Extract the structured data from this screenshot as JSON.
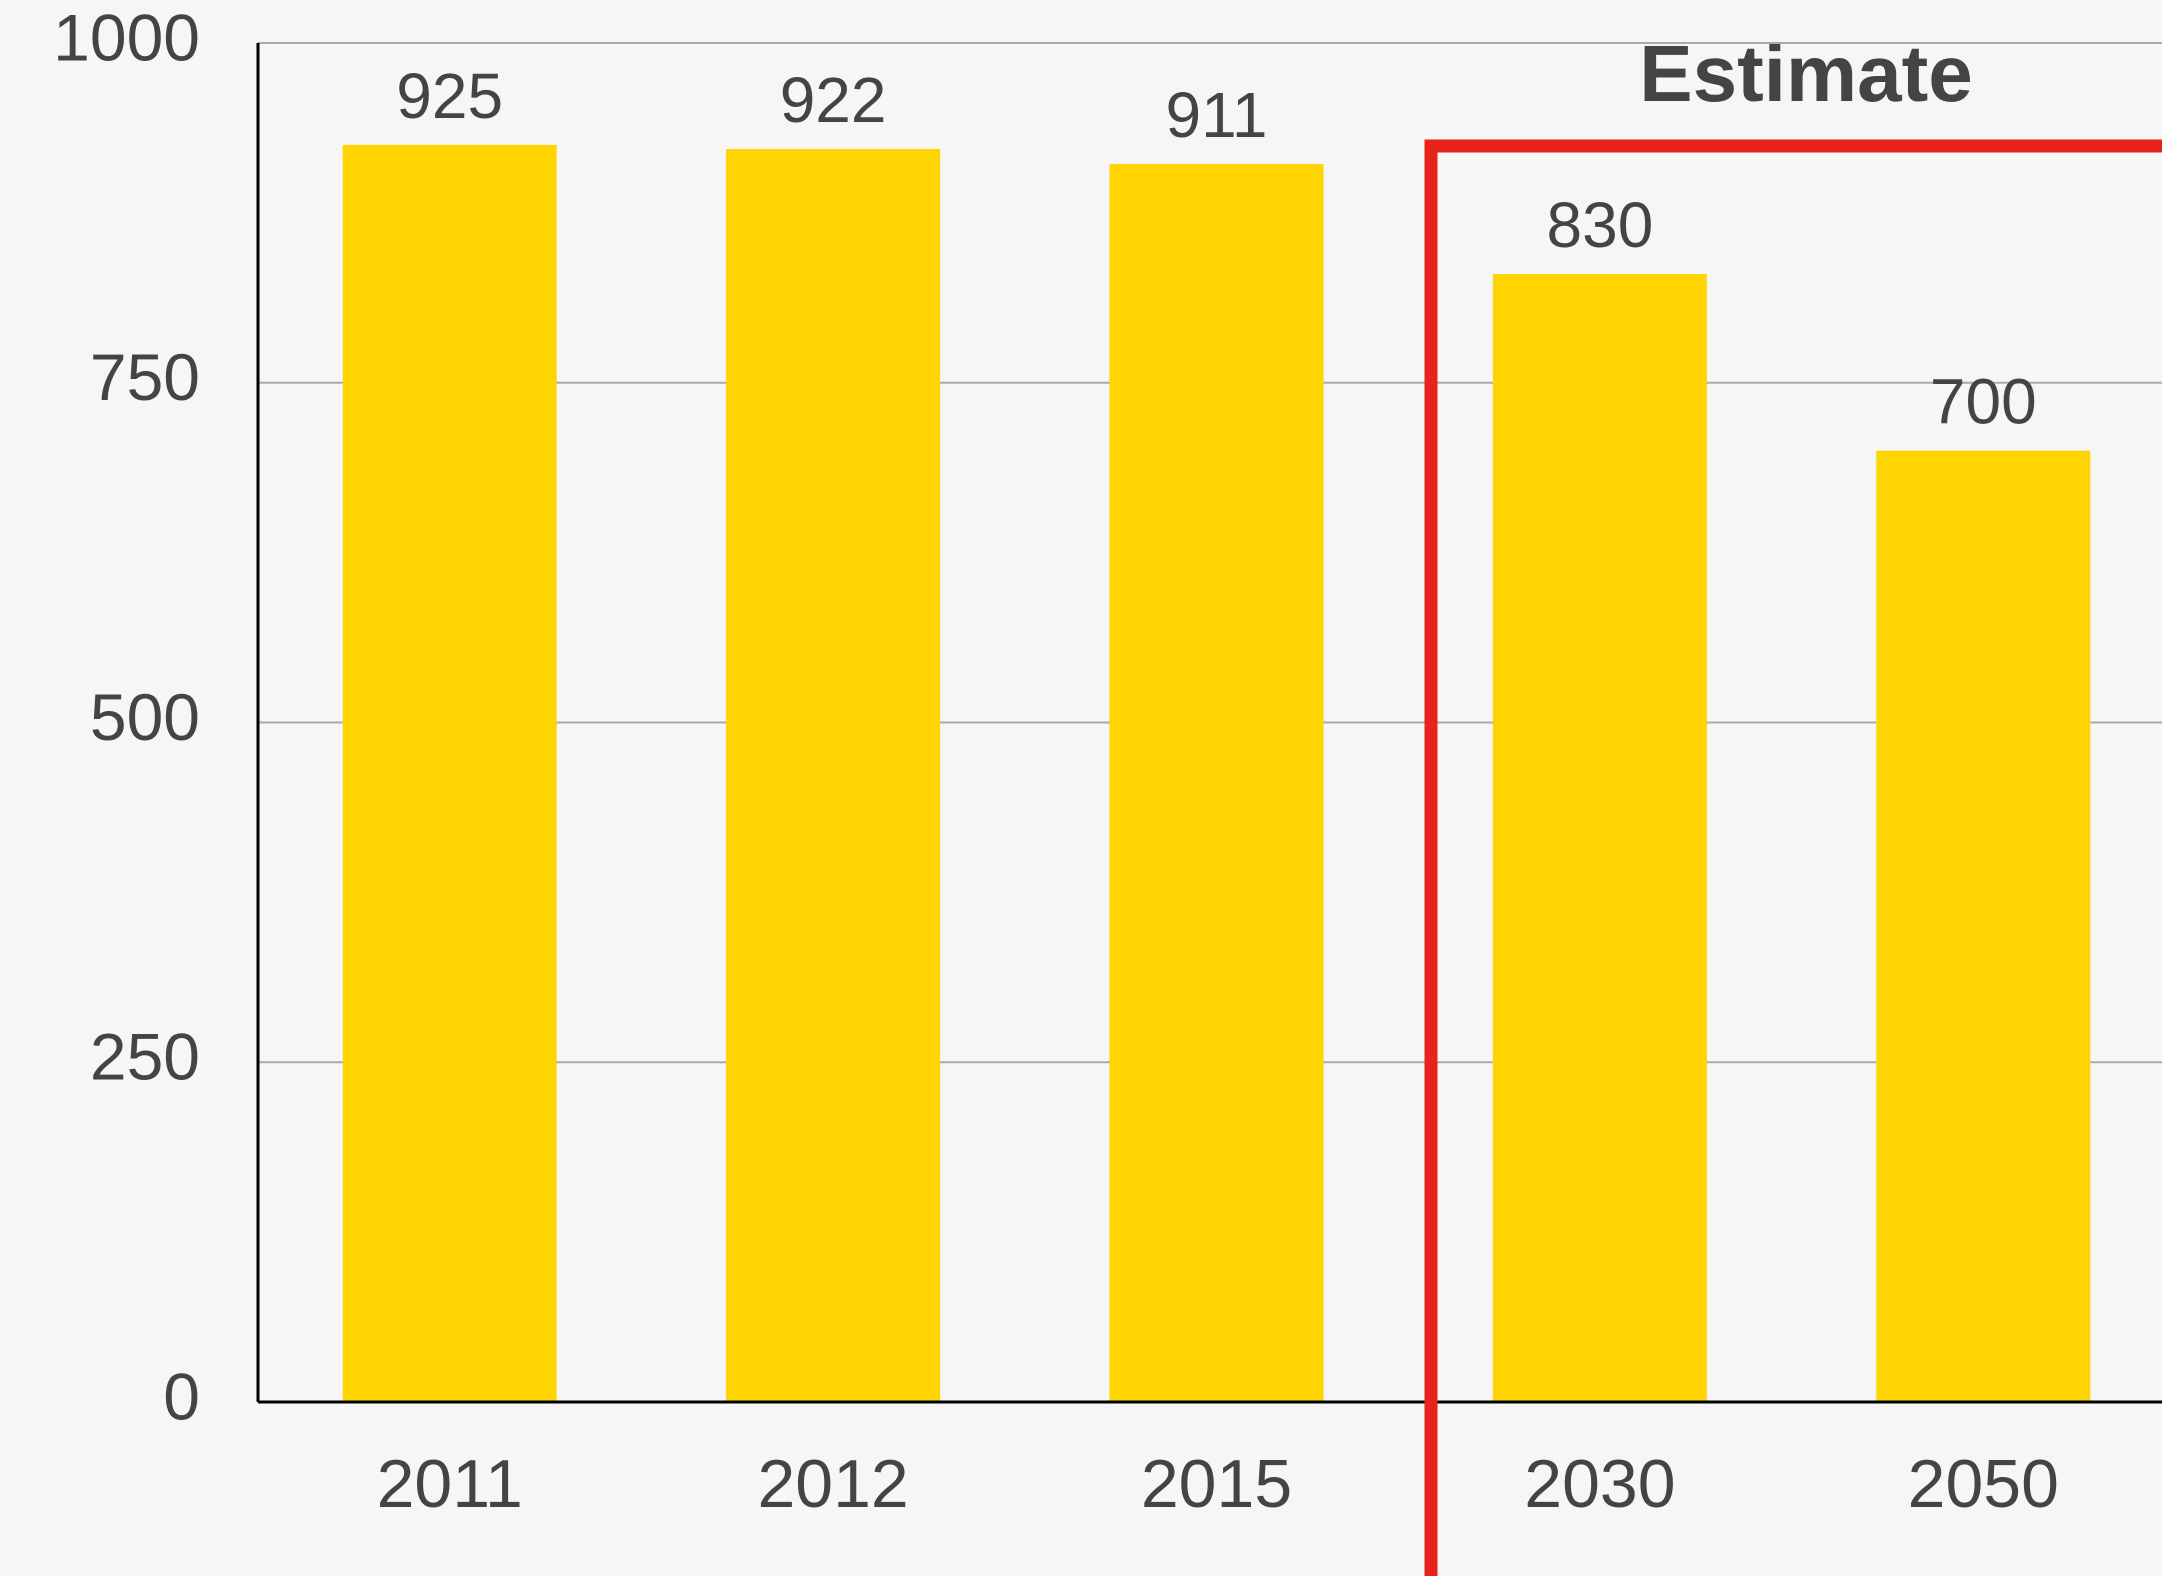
{
  "chart_data": {
    "type": "bar",
    "annotation": "Estimate",
    "categories": [
      "2011",
      "2012",
      "2015",
      "2030",
      "2050"
    ],
    "values": [
      925,
      922,
      911,
      830,
      700
    ],
    "color": "#ffd400",
    "ylim": [
      0,
      1000
    ],
    "yticks": [
      0,
      250,
      500,
      750,
      1000
    ],
    "grid": true
  }
}
